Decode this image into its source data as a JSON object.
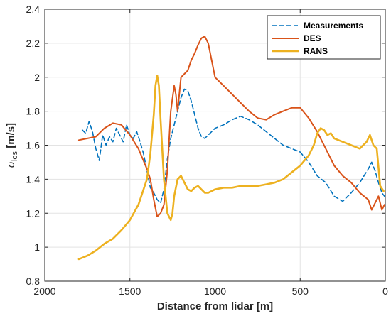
{
  "chart_data": {
    "type": "line",
    "title": "",
    "xlabel": "Distance from lidar [m]",
    "ylabel": {
      "symbol": "σ",
      "subscript": "los",
      "unit": " [m/s]"
    },
    "xlim": [
      2000,
      0
    ],
    "ylim": [
      0.8,
      2.4
    ],
    "x_reversed": true,
    "xticks": [
      2000,
      1500,
      1000,
      500,
      0
    ],
    "yticks": [
      0.8,
      1,
      1.2,
      1.4,
      1.6,
      1.8,
      2,
      2.2,
      2.4
    ],
    "xtick_labels": [
      "2000",
      "1500",
      "1000",
      "500",
      "0"
    ],
    "ytick_labels": [
      "0.8",
      "1",
      "1.2",
      "1.4",
      "1.6",
      "1.8",
      "2",
      "2.2",
      "2.4"
    ],
    "grid": true,
    "legend_position": "top-right",
    "series": [
      {
        "name": "Measurements",
        "color": "#0072BD",
        "style": "dashed",
        "x": [
          1780,
          1760,
          1740,
          1720,
          1700,
          1680,
          1660,
          1640,
          1620,
          1600,
          1580,
          1560,
          1540,
          1520,
          1500,
          1480,
          1460,
          1440,
          1420,
          1400,
          1380,
          1360,
          1340,
          1320,
          1300,
          1280,
          1260,
          1240,
          1220,
          1200,
          1180,
          1160,
          1140,
          1120,
          1100,
          1080,
          1060,
          1040,
          1020,
          1000,
          950,
          900,
          850,
          800,
          750,
          700,
          650,
          600,
          550,
          500,
          450,
          400,
          350,
          300,
          250,
          200,
          150,
          100,
          80,
          60,
          40,
          20,
          5
        ],
        "y": [
          1.69,
          1.67,
          1.74,
          1.68,
          1.58,
          1.51,
          1.66,
          1.6,
          1.65,
          1.62,
          1.7,
          1.66,
          1.62,
          1.72,
          1.66,
          1.64,
          1.68,
          1.62,
          1.55,
          1.45,
          1.35,
          1.32,
          1.28,
          1.26,
          1.34,
          1.52,
          1.64,
          1.72,
          1.8,
          1.88,
          1.93,
          1.92,
          1.86,
          1.78,
          1.7,
          1.65,
          1.64,
          1.66,
          1.68,
          1.7,
          1.72,
          1.75,
          1.77,
          1.75,
          1.72,
          1.68,
          1.64,
          1.6,
          1.58,
          1.56,
          1.5,
          1.42,
          1.38,
          1.3,
          1.27,
          1.32,
          1.38,
          1.46,
          1.5,
          1.45,
          1.38,
          1.32,
          1.3
        ]
      },
      {
        "name": "DES",
        "color": "#D95319",
        "style": "solid",
        "x": [
          1800,
          1750,
          1700,
          1650,
          1600,
          1550,
          1500,
          1450,
          1400,
          1380,
          1360,
          1340,
          1320,
          1300,
          1280,
          1260,
          1240,
          1230,
          1220,
          1200,
          1180,
          1160,
          1140,
          1120,
          1100,
          1080,
          1060,
          1040,
          1020,
          1000,
          950,
          900,
          850,
          800,
          750,
          700,
          650,
          600,
          550,
          500,
          450,
          400,
          350,
          300,
          250,
          200,
          150,
          100,
          80,
          60,
          40,
          20,
          5
        ],
        "y": [
          1.63,
          1.64,
          1.65,
          1.7,
          1.73,
          1.72,
          1.66,
          1.58,
          1.46,
          1.4,
          1.28,
          1.18,
          1.2,
          1.25,
          1.45,
          1.8,
          1.95,
          1.9,
          1.8,
          2,
          2.02,
          2.04,
          2.1,
          2.14,
          2.19,
          2.23,
          2.24,
          2.2,
          2.1,
          2.0,
          1.95,
          1.9,
          1.85,
          1.8,
          1.76,
          1.75,
          1.78,
          1.8,
          1.82,
          1.82,
          1.76,
          1.68,
          1.58,
          1.48,
          1.42,
          1.38,
          1.32,
          1.28,
          1.22,
          1.26,
          1.3,
          1.22,
          1.25
        ]
      },
      {
        "name": "RANS",
        "color": "#EDB120",
        "style": "solid",
        "x": [
          1800,
          1750,
          1700,
          1650,
          1600,
          1550,
          1500,
          1450,
          1400,
          1380,
          1360,
          1350,
          1340,
          1330,
          1320,
          1300,
          1280,
          1260,
          1250,
          1240,
          1220,
          1200,
          1180,
          1160,
          1140,
          1120,
          1100,
          1080,
          1060,
          1040,
          1020,
          1000,
          950,
          900,
          850,
          800,
          750,
          700,
          650,
          600,
          550,
          500,
          450,
          420,
          400,
          380,
          360,
          340,
          320,
          300,
          250,
          200,
          150,
          110,
          90,
          70,
          50,
          30,
          10
        ],
        "y": [
          0.93,
          0.95,
          0.98,
          1.02,
          1.05,
          1.1,
          1.16,
          1.25,
          1.4,
          1.55,
          1.78,
          1.95,
          2.01,
          1.95,
          1.75,
          1.4,
          1.2,
          1.16,
          1.2,
          1.3,
          1.4,
          1.42,
          1.38,
          1.34,
          1.33,
          1.35,
          1.36,
          1.34,
          1.32,
          1.32,
          1.33,
          1.34,
          1.35,
          1.35,
          1.36,
          1.36,
          1.36,
          1.37,
          1.38,
          1.4,
          1.44,
          1.48,
          1.54,
          1.6,
          1.67,
          1.7,
          1.69,
          1.66,
          1.67,
          1.64,
          1.62,
          1.6,
          1.58,
          1.62,
          1.66,
          1.6,
          1.58,
          1.36,
          1.33
        ]
      }
    ]
  }
}
